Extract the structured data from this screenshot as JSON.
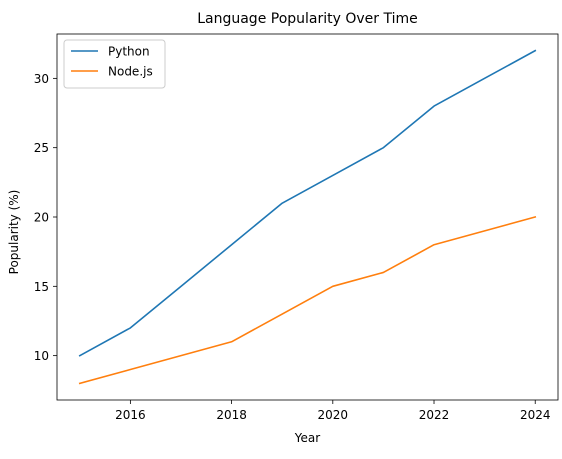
{
  "chart_data": {
    "type": "line",
    "title": "Language Popularity Over Time",
    "xlabel": "Year",
    "ylabel": "Popularity (%)",
    "x": [
      2015,
      2016,
      2017,
      2018,
      2019,
      2020,
      2021,
      2022,
      2023,
      2024
    ],
    "xticks": [
      2016,
      2018,
      2020,
      2022,
      2024
    ],
    "yticks": [
      10,
      15,
      20,
      25,
      30
    ],
    "xlim": [
      2014.55,
      2024.45
    ],
    "ylim": [
      6.8,
      33.2
    ],
    "grid": false,
    "legend_position": "upper-left",
    "series": [
      {
        "name": "Python",
        "color": "#1f77b4",
        "values": [
          10,
          12,
          15,
          18,
          21,
          23,
          25,
          28,
          30,
          32
        ]
      },
      {
        "name": "Node.js",
        "color": "#ff7f0e",
        "values": [
          8,
          9,
          10,
          11,
          13,
          15,
          16,
          18,
          19,
          20
        ]
      }
    ]
  }
}
